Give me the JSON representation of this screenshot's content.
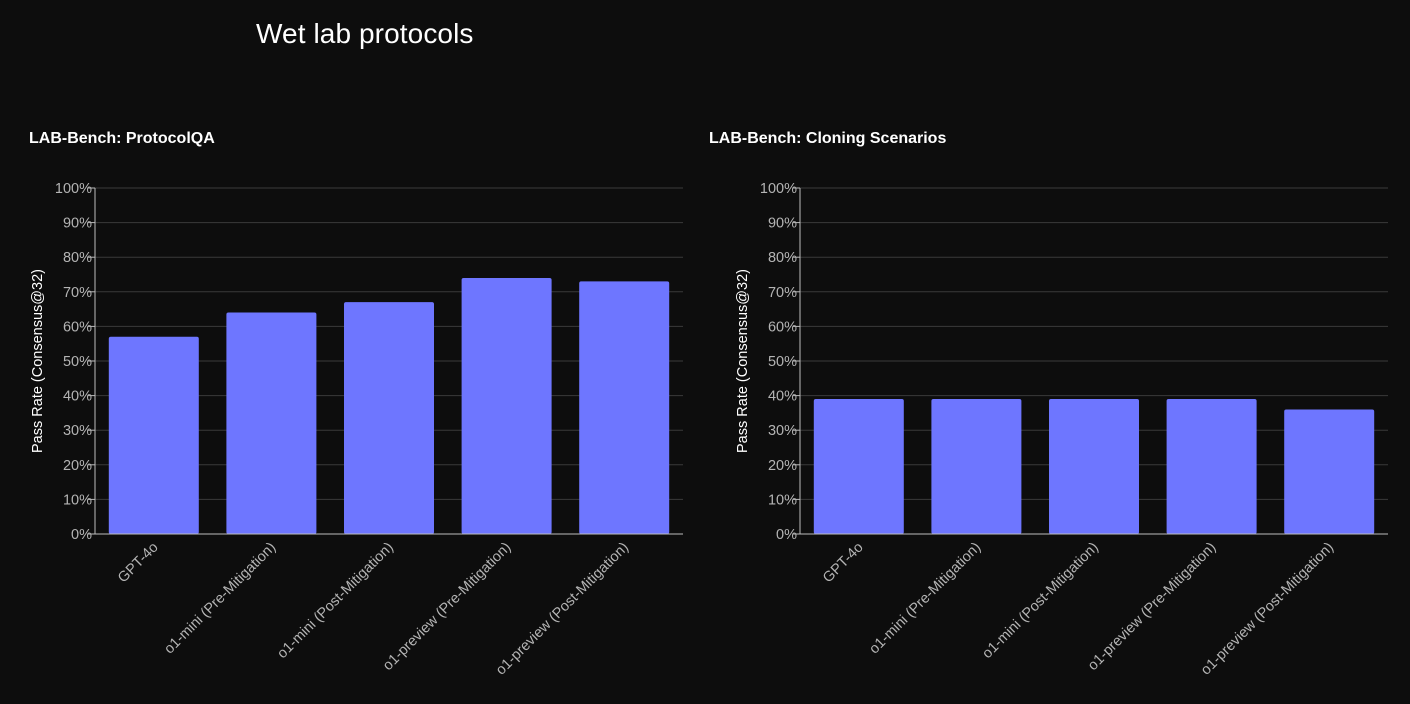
{
  "page": {
    "title": "Wet lab protocols"
  },
  "colors": {
    "background": "#0d0d0d",
    "bar": "#6e76ff",
    "grid": "#3a3a3a",
    "axis": "#bdbdbd",
    "tick_text": "#b4b4b4",
    "text": "#ffffff"
  },
  "chart_data": [
    {
      "type": "bar",
      "title": "LAB-Bench: ProtocolQA",
      "xlabel": "",
      "ylabel": "Pass Rate (Consensus@32)",
      "categories": [
        "GPT-4o",
        "o1-mini (Pre-Mitigation)",
        "o1-mini (Post-Mitigation)",
        "o1-preview (Pre-Mitigation)",
        "o1-preview (Post-Mitigation)"
      ],
      "values": [
        57,
        64,
        67,
        74,
        73
      ],
      "ylim": [
        0,
        100
      ],
      "yticks": [
        "0%",
        "10%",
        "20%",
        "30%",
        "40%",
        "50%",
        "60%",
        "70%",
        "80%",
        "90%",
        "100%"
      ],
      "grid": true
    },
    {
      "type": "bar",
      "title": "LAB-Bench: Cloning Scenarios",
      "xlabel": "",
      "ylabel": "Pass Rate (Consensus@32)",
      "categories": [
        "GPT-4o",
        "o1-mini (Pre-Mitigation)",
        "o1-mini (Post-Mitigation)",
        "o1-preview (Pre-Mitigation)",
        "o1-preview (Post-Mitigation)"
      ],
      "values": [
        39,
        39,
        39,
        39,
        36
      ],
      "ylim": [
        0,
        100
      ],
      "yticks": [
        "0%",
        "10%",
        "20%",
        "30%",
        "40%",
        "50%",
        "60%",
        "70%",
        "80%",
        "90%",
        "100%"
      ],
      "grid": true
    }
  ]
}
